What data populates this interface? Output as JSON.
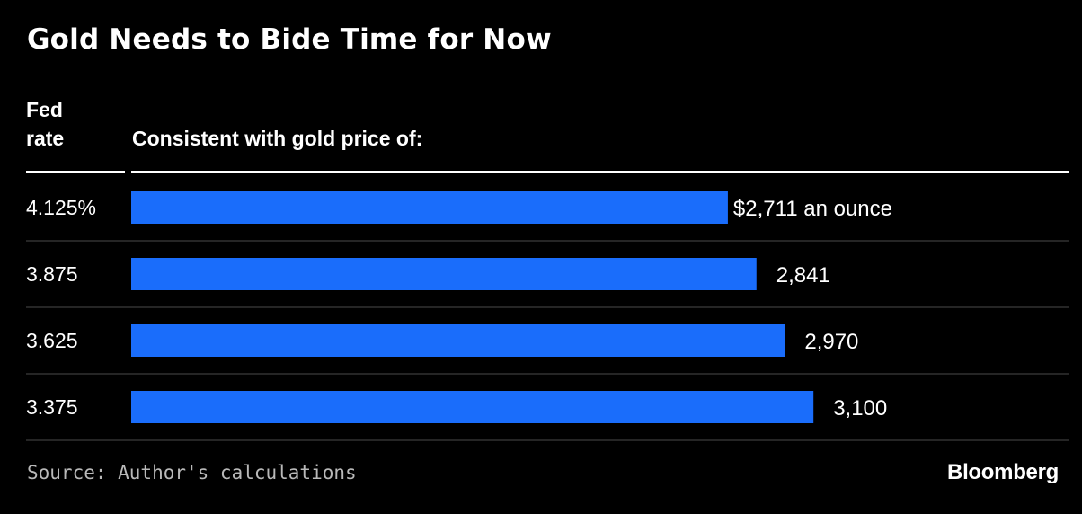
{
  "colors": {
    "background": "#000000",
    "bar": "#1a6dfb",
    "text": "#ffffff",
    "rule": "#4a4a4a",
    "source_text": "#b9b9b9"
  },
  "header": {
    "rate_column_label": "Fed\nrate",
    "price_column_label": "Consistent with gold price of:"
  },
  "footer": {
    "source": "Source: Author's calculations",
    "brand": "Bloomberg"
  },
  "chart_data": {
    "type": "bar",
    "orientation": "horizontal",
    "title": "Gold Needs to Bide Time for Now",
    "categories": [
      "4.125%",
      "3.875",
      "3.625",
      "3.375"
    ],
    "values": [
      2711,
      2841,
      2970,
      3100
    ],
    "value_labels": [
      "$2,711 an ounce",
      "2,841",
      "2,970",
      "3,100"
    ],
    "xlim": [
      0,
      3400
    ],
    "grid": false,
    "legend": "none"
  }
}
